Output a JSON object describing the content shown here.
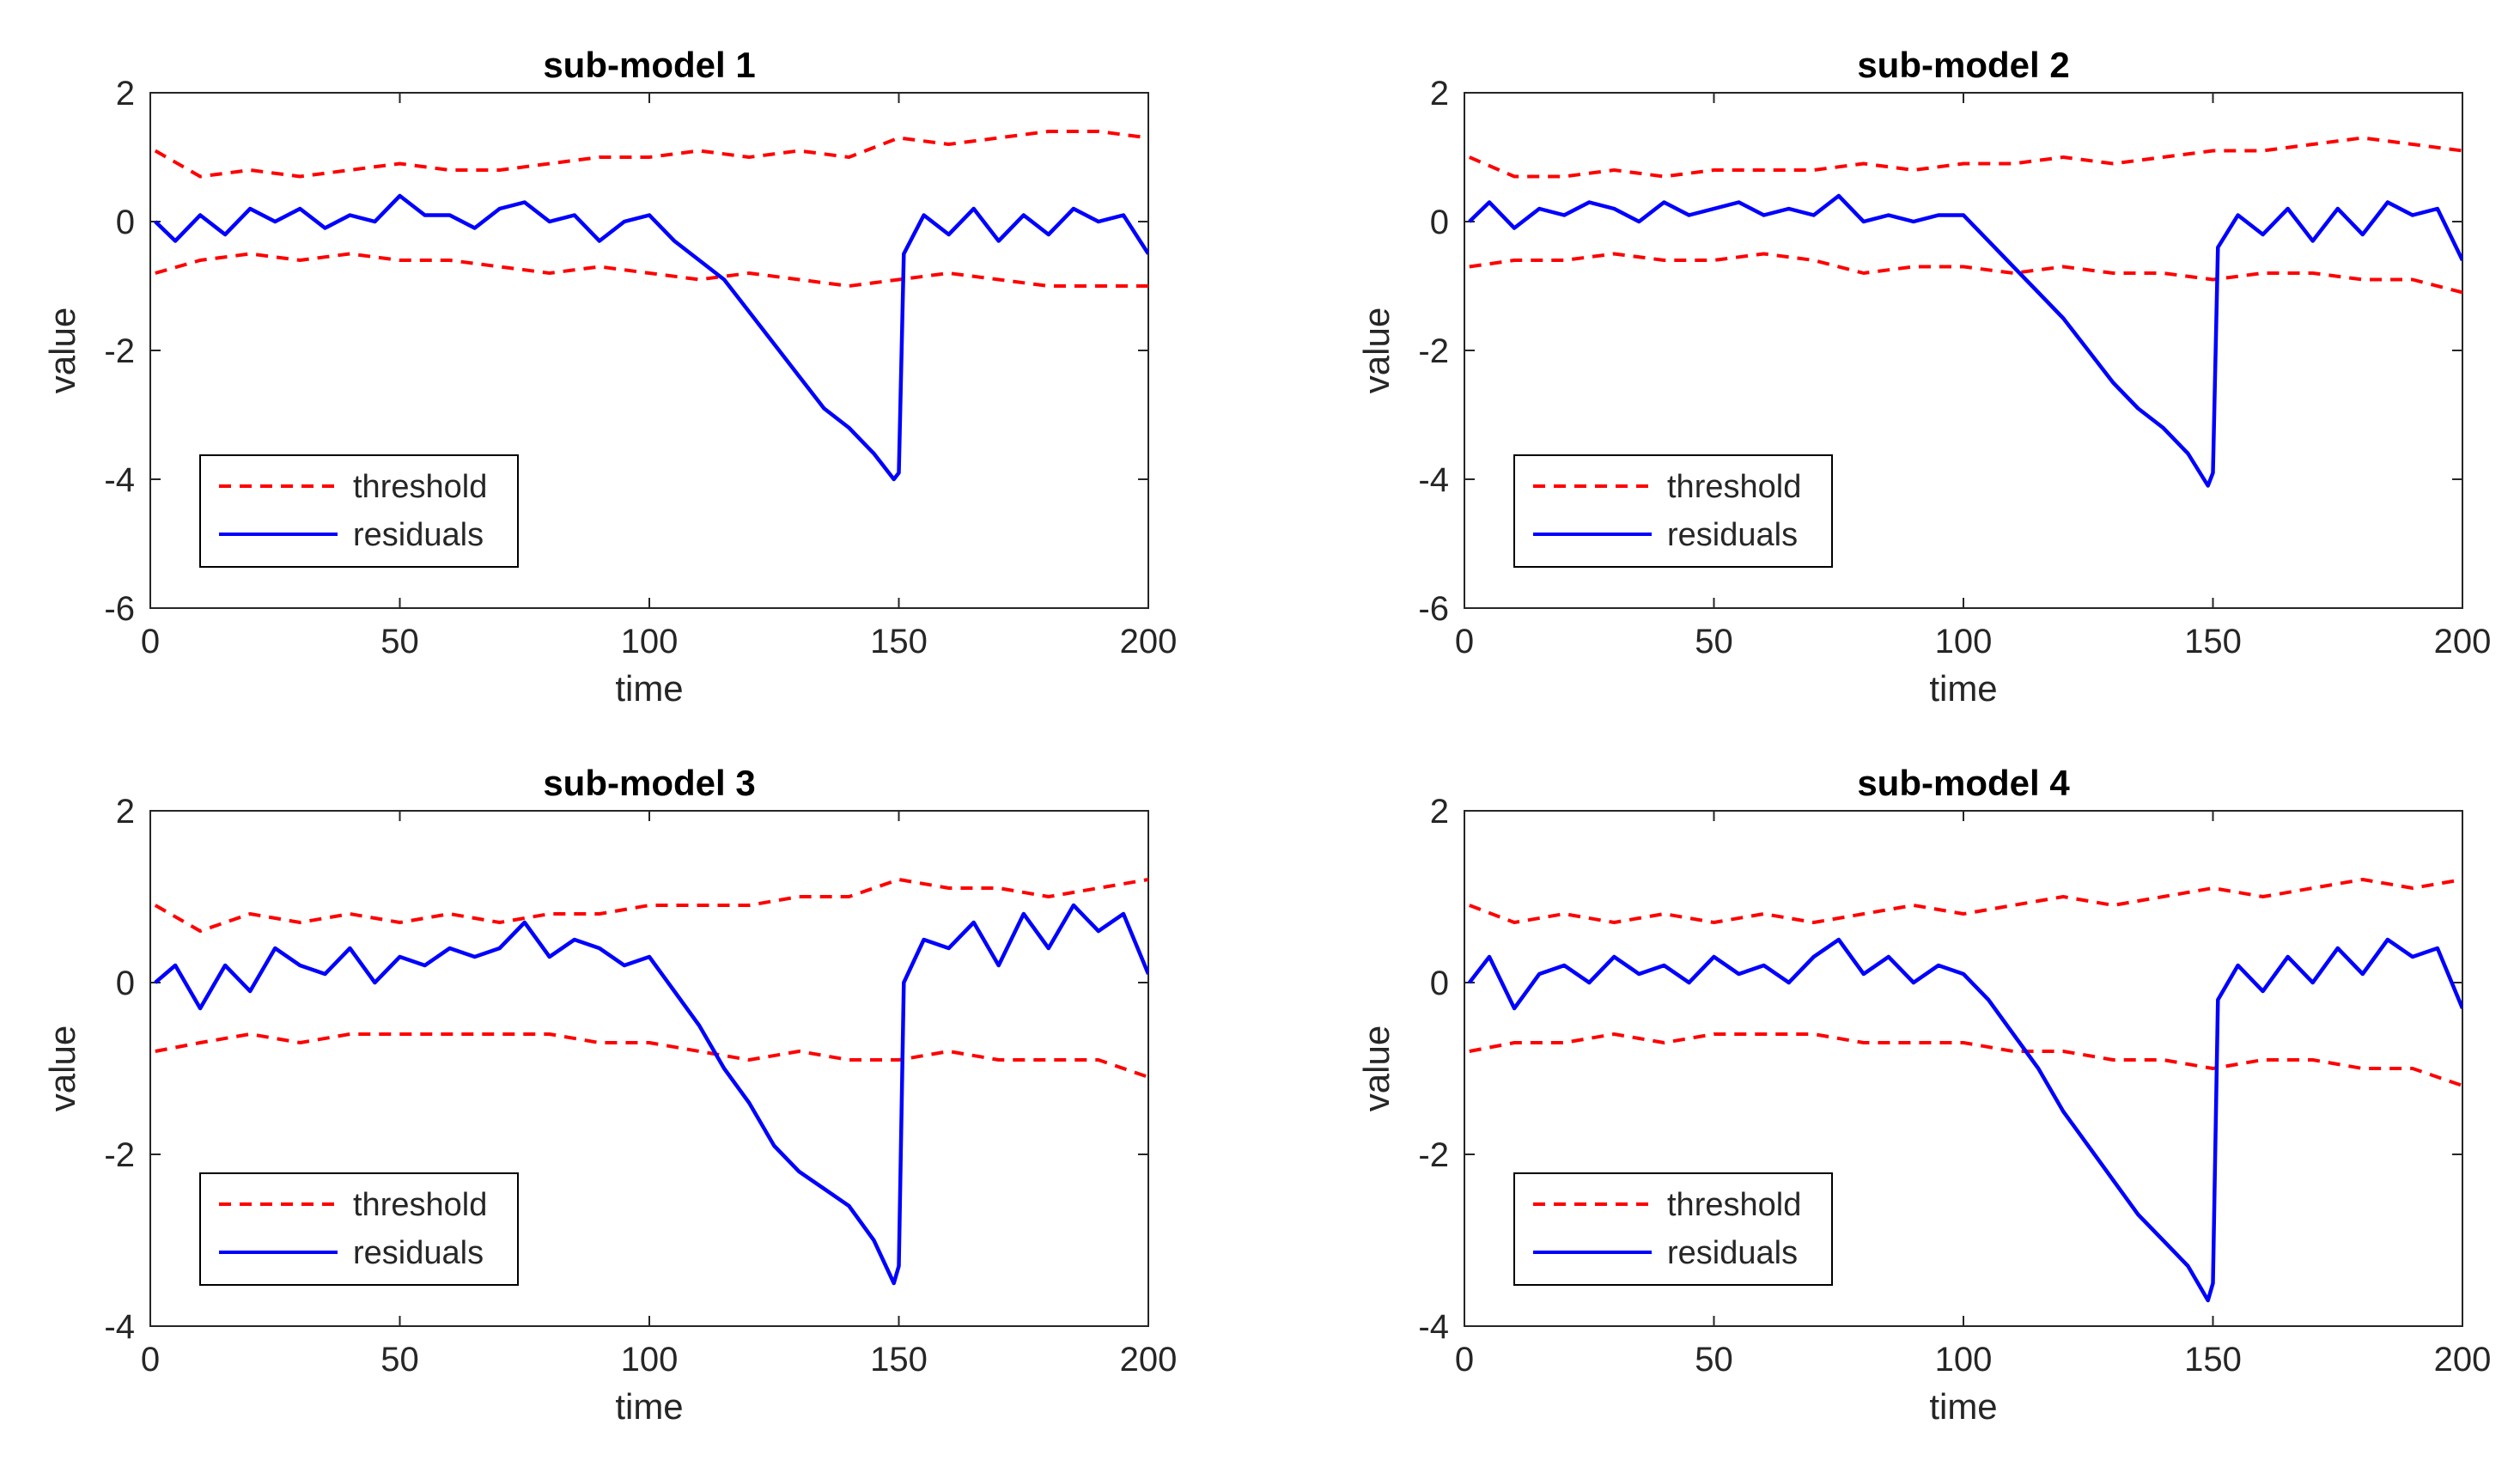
{
  "figure": {
    "colors": {
      "threshold": "#ff0000",
      "residuals": "#0000ff",
      "axes": "#262626"
    },
    "legend_entries": [
      "threshold",
      "residuals"
    ]
  },
  "chart_data": [
    {
      "type": "line",
      "title": "sub-model 1",
      "xlabel": "time",
      "ylabel": "value",
      "xlim": [
        0,
        200
      ],
      "ylim": [
        -6,
        2
      ],
      "xticks": [
        0,
        50,
        100,
        150,
        200
      ],
      "yticks": [
        -6,
        -4,
        -2,
        0,
        2
      ],
      "legend_location": "bottom-left",
      "series": [
        {
          "name": "threshold",
          "style": "dashed",
          "color": "#ff0000",
          "role": "upper",
          "x": [
            1,
            10,
            20,
            30,
            40,
            50,
            60,
            70,
            80,
            90,
            100,
            110,
            120,
            130,
            140,
            150,
            160,
            170,
            180,
            190,
            200
          ],
          "values": [
            1.1,
            0.7,
            0.8,
            0.7,
            0.8,
            0.9,
            0.8,
            0.8,
            0.9,
            1.0,
            1.0,
            1.1,
            1.0,
            1.1,
            1.0,
            1.3,
            1.2,
            1.3,
            1.4,
            1.4,
            1.3
          ]
        },
        {
          "name": "threshold",
          "style": "dashed",
          "color": "#ff0000",
          "role": "lower",
          "x": [
            1,
            10,
            20,
            30,
            40,
            50,
            60,
            70,
            80,
            90,
            100,
            110,
            120,
            130,
            140,
            150,
            160,
            170,
            180,
            190,
            200
          ],
          "values": [
            -0.8,
            -0.6,
            -0.5,
            -0.6,
            -0.5,
            -0.6,
            -0.6,
            -0.7,
            -0.8,
            -0.7,
            -0.8,
            -0.9,
            -0.8,
            -0.9,
            -1.0,
            -0.9,
            -0.8,
            -0.9,
            -1.0,
            -1.0,
            -1.0
          ]
        },
        {
          "name": "residuals",
          "style": "solid",
          "color": "#0000ff",
          "x": [
            1,
            5,
            10,
            15,
            20,
            25,
            30,
            35,
            40,
            45,
            50,
            55,
            60,
            65,
            70,
            75,
            80,
            85,
            90,
            95,
            100,
            105,
            110,
            115,
            120,
            125,
            130,
            135,
            140,
            145,
            149,
            150,
            151,
            155,
            160,
            165,
            170,
            175,
            180,
            185,
            190,
            195,
            200
          ],
          "values": [
            0.0,
            -0.3,
            0.1,
            -0.2,
            0.2,
            0.0,
            0.2,
            -0.1,
            0.1,
            0.0,
            0.4,
            0.1,
            0.1,
            -0.1,
            0.2,
            0.3,
            0.0,
            0.1,
            -0.3,
            0.0,
            0.1,
            -0.3,
            -0.6,
            -0.9,
            -1.4,
            -1.9,
            -2.4,
            -2.9,
            -3.2,
            -3.6,
            -4.0,
            -3.9,
            -0.5,
            0.1,
            -0.2,
            0.2,
            -0.3,
            0.1,
            -0.2,
            0.2,
            0.0,
            0.1,
            -0.5
          ]
        }
      ]
    },
    {
      "type": "line",
      "title": "sub-model 2",
      "xlabel": "time",
      "ylabel": "value",
      "xlim": [
        0,
        200
      ],
      "ylim": [
        -6,
        2
      ],
      "xticks": [
        0,
        50,
        100,
        150,
        200
      ],
      "yticks": [
        -6,
        -4,
        -2,
        0,
        2
      ],
      "legend_location": "bottom-left",
      "series": [
        {
          "name": "threshold",
          "style": "dashed",
          "color": "#ff0000",
          "role": "upper",
          "x": [
            1,
            10,
            20,
            30,
            40,
            50,
            60,
            70,
            80,
            90,
            100,
            110,
            120,
            130,
            140,
            150,
            160,
            170,
            180,
            190,
            200
          ],
          "values": [
            1.0,
            0.7,
            0.7,
            0.8,
            0.7,
            0.8,
            0.8,
            0.8,
            0.9,
            0.8,
            0.9,
            0.9,
            1.0,
            0.9,
            1.0,
            1.1,
            1.1,
            1.2,
            1.3,
            1.2,
            1.1
          ]
        },
        {
          "name": "threshold",
          "style": "dashed",
          "color": "#ff0000",
          "role": "lower",
          "x": [
            1,
            10,
            20,
            30,
            40,
            50,
            60,
            70,
            80,
            90,
            100,
            110,
            120,
            130,
            140,
            150,
            160,
            170,
            180,
            190,
            200
          ],
          "values": [
            -0.7,
            -0.6,
            -0.6,
            -0.5,
            -0.6,
            -0.6,
            -0.5,
            -0.6,
            -0.8,
            -0.7,
            -0.7,
            -0.8,
            -0.7,
            -0.8,
            -0.8,
            -0.9,
            -0.8,
            -0.8,
            -0.9,
            -0.9,
            -1.1
          ]
        },
        {
          "name": "residuals",
          "style": "solid",
          "color": "#0000ff",
          "x": [
            1,
            5,
            10,
            15,
            20,
            25,
            30,
            35,
            40,
            45,
            50,
            55,
            60,
            65,
            70,
            75,
            80,
            85,
            90,
            95,
            100,
            105,
            110,
            115,
            120,
            125,
            130,
            135,
            140,
            145,
            149,
            150,
            151,
            155,
            160,
            165,
            170,
            175,
            180,
            185,
            190,
            195,
            200
          ],
          "values": [
            0.0,
            0.3,
            -0.1,
            0.2,
            0.1,
            0.3,
            0.2,
            0.0,
            0.3,
            0.1,
            0.2,
            0.3,
            0.1,
            0.2,
            0.1,
            0.4,
            0.0,
            0.1,
            0.0,
            0.1,
            0.1,
            -0.3,
            -0.7,
            -1.1,
            -1.5,
            -2.0,
            -2.5,
            -2.9,
            -3.2,
            -3.6,
            -4.1,
            -3.9,
            -0.4,
            0.1,
            -0.2,
            0.2,
            -0.3,
            0.2,
            -0.2,
            0.3,
            0.1,
            0.2,
            -0.6
          ]
        }
      ]
    },
    {
      "type": "line",
      "title": "sub-model 3",
      "xlabel": "time",
      "ylabel": "value",
      "xlim": [
        0,
        200
      ],
      "ylim": [
        -4,
        2
      ],
      "xticks": [
        0,
        50,
        100,
        150,
        200
      ],
      "yticks": [
        -4,
        -2,
        0,
        2
      ],
      "legend_location": "bottom-left",
      "series": [
        {
          "name": "threshold",
          "style": "dashed",
          "color": "#ff0000",
          "role": "upper",
          "x": [
            1,
            10,
            20,
            30,
            40,
            50,
            60,
            70,
            80,
            90,
            100,
            110,
            120,
            130,
            140,
            150,
            160,
            170,
            180,
            190,
            200
          ],
          "values": [
            0.9,
            0.6,
            0.8,
            0.7,
            0.8,
            0.7,
            0.8,
            0.7,
            0.8,
            0.8,
            0.9,
            0.9,
            0.9,
            1.0,
            1.0,
            1.2,
            1.1,
            1.1,
            1.0,
            1.1,
            1.2
          ]
        },
        {
          "name": "threshold",
          "style": "dashed",
          "color": "#ff0000",
          "role": "lower",
          "x": [
            1,
            10,
            20,
            30,
            40,
            50,
            60,
            70,
            80,
            90,
            100,
            110,
            120,
            130,
            140,
            150,
            160,
            170,
            180,
            190,
            200
          ],
          "values": [
            -0.8,
            -0.7,
            -0.6,
            -0.7,
            -0.6,
            -0.6,
            -0.6,
            -0.6,
            -0.6,
            -0.7,
            -0.7,
            -0.8,
            -0.9,
            -0.8,
            -0.9,
            -0.9,
            -0.8,
            -0.9,
            -0.9,
            -0.9,
            -1.1
          ]
        },
        {
          "name": "residuals",
          "style": "solid",
          "color": "#0000ff",
          "x": [
            1,
            5,
            10,
            15,
            20,
            25,
            30,
            35,
            40,
            45,
            50,
            55,
            60,
            65,
            70,
            75,
            80,
            85,
            90,
            95,
            100,
            105,
            110,
            115,
            120,
            125,
            130,
            135,
            140,
            145,
            149,
            150,
            151,
            155,
            160,
            165,
            170,
            175,
            180,
            185,
            190,
            195,
            200
          ],
          "values": [
            0.0,
            0.2,
            -0.3,
            0.2,
            -0.1,
            0.4,
            0.2,
            0.1,
            0.4,
            0.0,
            0.3,
            0.2,
            0.4,
            0.3,
            0.4,
            0.7,
            0.3,
            0.5,
            0.4,
            0.2,
            0.3,
            -0.1,
            -0.5,
            -1.0,
            -1.4,
            -1.9,
            -2.2,
            -2.4,
            -2.6,
            -3.0,
            -3.5,
            -3.3,
            0.0,
            0.5,
            0.4,
            0.7,
            0.2,
            0.8,
            0.4,
            0.9,
            0.6,
            0.8,
            0.1
          ]
        }
      ]
    },
    {
      "type": "line",
      "title": "sub-model 4",
      "xlabel": "time",
      "ylabel": "value",
      "xlim": [
        0,
        200
      ],
      "ylim": [
        -4,
        2
      ],
      "xticks": [
        0,
        50,
        100,
        150,
        200
      ],
      "yticks": [
        -4,
        -2,
        0,
        2
      ],
      "legend_location": "bottom-left",
      "series": [
        {
          "name": "threshold",
          "style": "dashed",
          "color": "#ff0000",
          "role": "upper",
          "x": [
            1,
            10,
            20,
            30,
            40,
            50,
            60,
            70,
            80,
            90,
            100,
            110,
            120,
            130,
            140,
            150,
            160,
            170,
            180,
            190,
            200
          ],
          "values": [
            0.9,
            0.7,
            0.8,
            0.7,
            0.8,
            0.7,
            0.8,
            0.7,
            0.8,
            0.9,
            0.8,
            0.9,
            1.0,
            0.9,
            1.0,
            1.1,
            1.0,
            1.1,
            1.2,
            1.1,
            1.2
          ]
        },
        {
          "name": "threshold",
          "style": "dashed",
          "color": "#ff0000",
          "role": "lower",
          "x": [
            1,
            10,
            20,
            30,
            40,
            50,
            60,
            70,
            80,
            90,
            100,
            110,
            120,
            130,
            140,
            150,
            160,
            170,
            180,
            190,
            200
          ],
          "values": [
            -0.8,
            -0.7,
            -0.7,
            -0.6,
            -0.7,
            -0.6,
            -0.6,
            -0.6,
            -0.7,
            -0.7,
            -0.7,
            -0.8,
            -0.8,
            -0.9,
            -0.9,
            -1.0,
            -0.9,
            -0.9,
            -1.0,
            -1.0,
            -1.2
          ]
        },
        {
          "name": "residuals",
          "style": "solid",
          "color": "#0000ff",
          "x": [
            1,
            5,
            10,
            15,
            20,
            25,
            30,
            35,
            40,
            45,
            50,
            55,
            60,
            65,
            70,
            75,
            80,
            85,
            90,
            95,
            100,
            105,
            110,
            115,
            120,
            125,
            130,
            135,
            140,
            145,
            149,
            150,
            151,
            155,
            160,
            165,
            170,
            175,
            180,
            185,
            190,
            195,
            200
          ],
          "values": [
            0.0,
            0.3,
            -0.3,
            0.1,
            0.2,
            0.0,
            0.3,
            0.1,
            0.2,
            0.0,
            0.3,
            0.1,
            0.2,
            0.0,
            0.3,
            0.5,
            0.1,
            0.3,
            0.0,
            0.2,
            0.1,
            -0.2,
            -0.6,
            -1.0,
            -1.5,
            -1.9,
            -2.3,
            -2.7,
            -3.0,
            -3.3,
            -3.7,
            -3.5,
            -0.2,
            0.2,
            -0.1,
            0.3,
            0.0,
            0.4,
            0.1,
            0.5,
            0.3,
            0.4,
            -0.3
          ]
        }
      ]
    }
  ]
}
